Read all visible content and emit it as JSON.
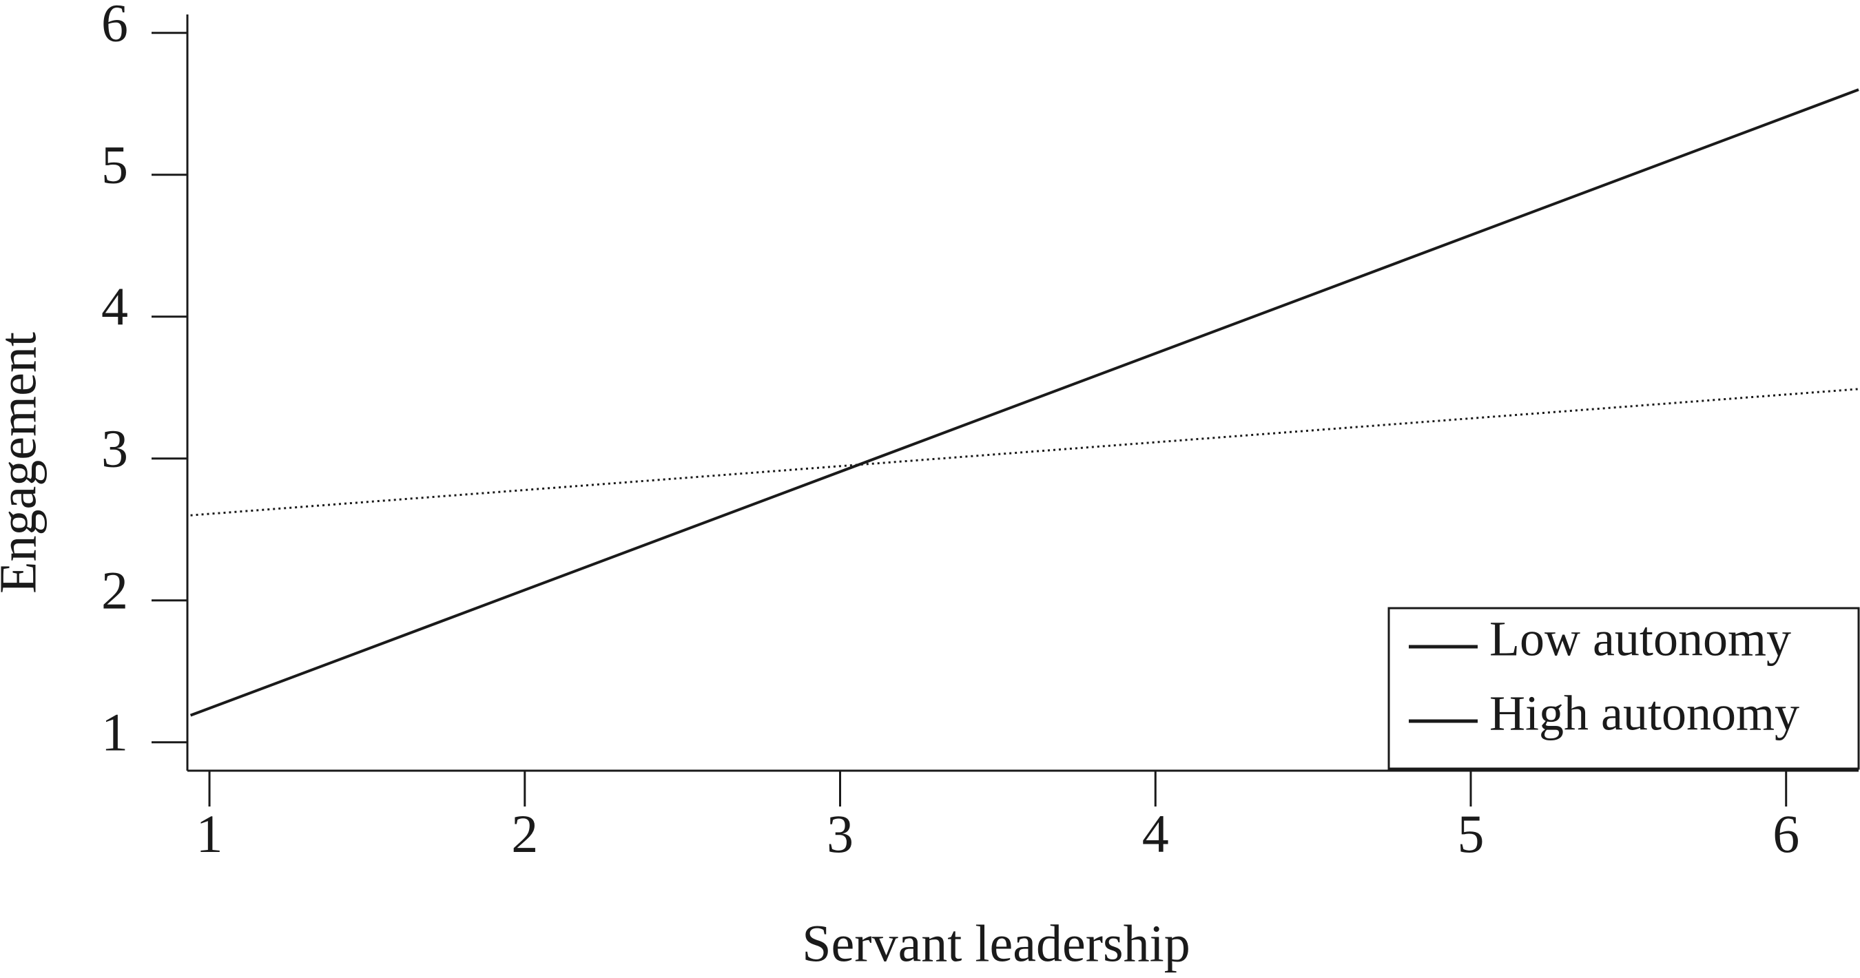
{
  "chart_data": {
    "type": "line",
    "xlabel": "Servant leadership",
    "ylabel": "Engagement",
    "x": [
      0.94,
      6.23
    ],
    "series": [
      {
        "name": "Low autonomy",
        "color": "#1a1a1a",
        "style": "solid",
        "values": [
          1.19,
          5.6
        ]
      },
      {
        "name": "High autonomy",
        "color": "#1a1a1a",
        "style": "dotted",
        "values": [
          2.6,
          3.49
        ]
      }
    ],
    "xlim": [
      0.93,
      6.23
    ],
    "ylim": [
      0.8,
      6.13
    ],
    "xticks": [
      1,
      2,
      3,
      4,
      5,
      6
    ],
    "yticks": [
      1,
      2,
      3,
      4,
      5,
      6
    ],
    "legend": "lower right"
  }
}
